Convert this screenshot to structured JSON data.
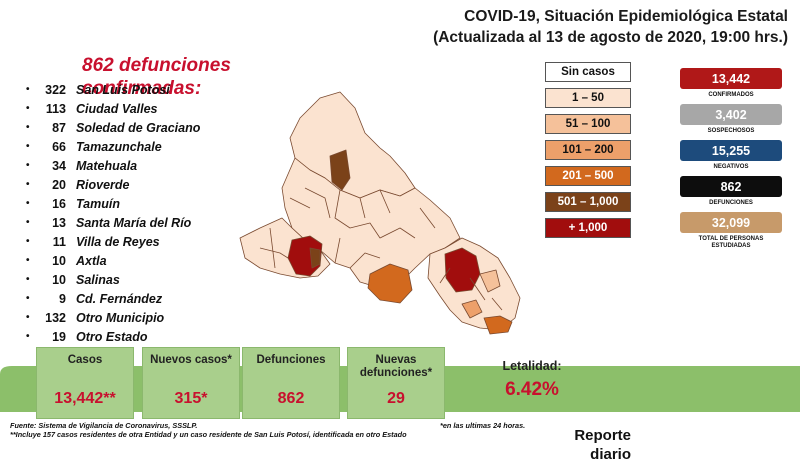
{
  "header": {
    "line1": "COVID-19, Situación Epidemiológica Estatal",
    "line2": "(Actualizada al 13 de agosto de 2020, 19:00 hrs.)"
  },
  "deaths_title": "862 defunciones confirmadas:",
  "municipios": [
    {
      "count": "322",
      "name": "San Luis Potosí"
    },
    {
      "count": "113",
      "name": "Ciudad Valles"
    },
    {
      "count": "87",
      "name": "Soledad de Graciano"
    },
    {
      "count": "66",
      "name": "Tamazunchale"
    },
    {
      "count": "34",
      "name": "Matehuala"
    },
    {
      "count": "20",
      "name": "Rioverde"
    },
    {
      "count": "16",
      "name": "Tamuín"
    },
    {
      "count": "13",
      "name": "Santa María del Río"
    },
    {
      "count": "11",
      "name": "Villa de Reyes"
    },
    {
      "count": "10",
      "name": "Axtla"
    },
    {
      "count": "10",
      "name": "Salinas"
    },
    {
      "count": "9",
      "name": "Cd. Fernández"
    },
    {
      "count": "132",
      "name": "Otro Municipio"
    },
    {
      "count": "19",
      "name": "Otro Estado"
    }
  ],
  "legend": [
    {
      "label": "Sin casos",
      "color": "#ffffff",
      "text_color": "#111111"
    },
    {
      "label": "1 – 50",
      "color": "#fbe3d0",
      "text_color": "#111111"
    },
    {
      "label": "51 – 100",
      "color": "#f5c19a",
      "text_color": "#111111"
    },
    {
      "label": "101 – 200",
      "color": "#eda06a",
      "text_color": "#111111"
    },
    {
      "label": "201 – 500",
      "color": "#d2691e",
      "text_color": "#ffffff"
    },
    {
      "label": "501 – 1,000",
      "color": "#7b4219",
      "text_color": "#ffffff"
    },
    {
      "label": "+ 1,000",
      "color": "#a10d0d",
      "text_color": "#ffffff"
    }
  ],
  "kpis": [
    {
      "value": "13,442",
      "label": "CONFIRMADOS",
      "color": "#b01818"
    },
    {
      "value": "3,402",
      "label": "SOSPECHOSOS",
      "color": "#a7a7a7"
    },
    {
      "value": "15,255",
      "label": "NEGATIVOS",
      "color": "#1d4b7c"
    },
    {
      "value": "862",
      "label": "DEFUNCIONES",
      "color": "#0d0d0d"
    },
    {
      "value": "32,099",
      "label": "TOTAL DE PERSONAS ESTUDIADAS",
      "color": "#c79a6a"
    }
  ],
  "summary": {
    "casos_label": "Casos",
    "casos_value": "13,442**",
    "nuevos_label": "Nuevos casos*",
    "nuevos_value": "315*",
    "defunciones_label": "Defunciones",
    "defunciones_value": "862",
    "nuevas_def_label": "Nuevas defunciones*",
    "nuevas_def_value": "29",
    "letalidad_label": "Letalidad:",
    "letalidad_value": "6.42%"
  },
  "footnotes": {
    "source": "Fuente: Sistema de Vigilancia de Coronavirus, SSSLP.",
    "note2": "**Incluye 157 casos residentes de otra Entidad y un caso residente de San Luis Potosí, identificada en otro Estado",
    "note1": "*en las ultimas 24 horas."
  },
  "report": {
    "line1": "Reporte",
    "line2": "diario"
  },
  "colors": {
    "accent_red": "#c8102e",
    "card_green": "#a9cf8c",
    "band_green": "#8cbf6a"
  }
}
